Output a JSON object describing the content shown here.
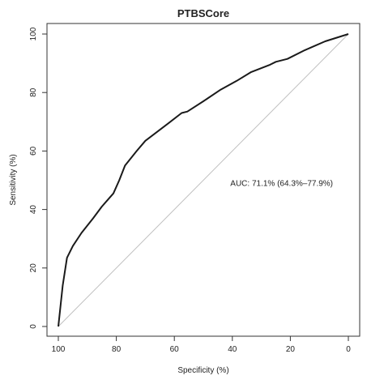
{
  "chart_data": {
    "type": "line",
    "title": "PTBSCore",
    "xlabel": "Specificity (%)",
    "ylabel": "Sensitivity (%)",
    "xlim": [
      100,
      0
    ],
    "ylim": [
      0,
      100
    ],
    "x_reversed": true,
    "xticks": [
      100,
      80,
      60,
      40,
      20,
      0
    ],
    "yticks": [
      0,
      20,
      40,
      60,
      80,
      100
    ],
    "grid": false,
    "annotation": {
      "text": "AUC: 71.1% (64.3%–77.9%)",
      "x": 23,
      "y": 48
    },
    "reference_line": {
      "from": [
        100,
        0
      ],
      "to": [
        0,
        100
      ],
      "color": "#bfbfbf"
    },
    "series": [
      {
        "color": "#1a1a1a",
        "points": [
          [
            100,
            0
          ],
          [
            98.5,
            14
          ],
          [
            97,
            23.5
          ],
          [
            95,
            27.5
          ],
          [
            92,
            32
          ],
          [
            88,
            37
          ],
          [
            85,
            41
          ],
          [
            81,
            45.5
          ],
          [
            79,
            50
          ],
          [
            77,
            55
          ],
          [
            73,
            60
          ],
          [
            70,
            63.5
          ],
          [
            66,
            66.5
          ],
          [
            62,
            69.5
          ],
          [
            57.5,
            73
          ],
          [
            55.5,
            73.5
          ],
          [
            50,
            77
          ],
          [
            44,
            81
          ],
          [
            38.5,
            84
          ],
          [
            33.5,
            87
          ],
          [
            27,
            89.5
          ],
          [
            25,
            90.5
          ],
          [
            21,
            91.5
          ],
          [
            15,
            94.5
          ],
          [
            8,
            97.5
          ],
          [
            0,
            100
          ]
        ]
      }
    ]
  }
}
